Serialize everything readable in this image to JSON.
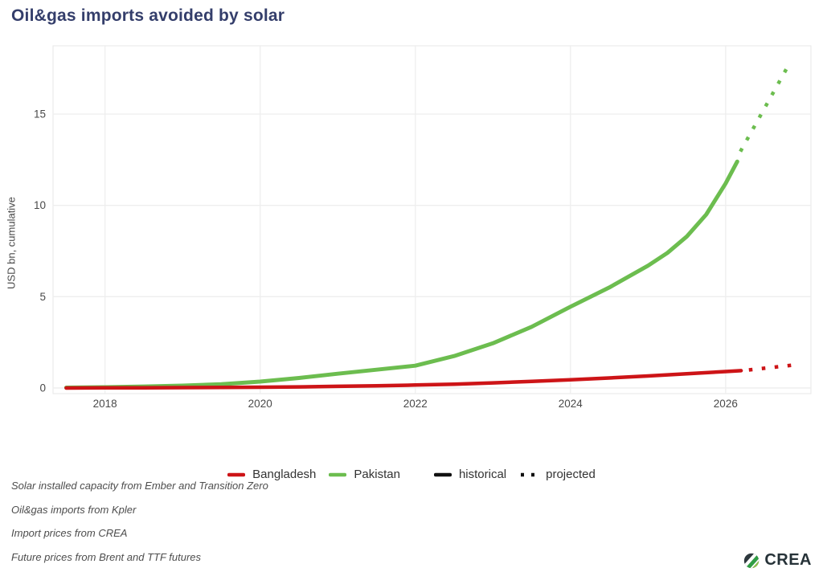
{
  "title": "Oil&gas imports avoided by solar",
  "colors": {
    "bangladesh": "#cd1417",
    "pakistan": "#6cbd4f",
    "historical_key": "#111111",
    "title": "#343e6b",
    "grid": "#eeeeee",
    "axis_text": "#4a4a4a"
  },
  "legend": {
    "items": [
      {
        "label": "Bangladesh",
        "color": "#cd1417",
        "dash": "solid"
      },
      {
        "label": "Pakistan",
        "color": "#6cbd4f",
        "dash": "solid"
      },
      {
        "label": "historical",
        "color": "#111111",
        "dash": "solid"
      },
      {
        "label": "projected",
        "color": "#111111",
        "dash": "dotted"
      }
    ]
  },
  "footnotes": [
    "Solar installed capacity from Ember and Transition Zero",
    "Oil&gas imports from Kpler",
    "Import prices from CREA",
    "Future prices from Brent and TTF futures"
  ],
  "logo": {
    "text": "CREA"
  },
  "chart_data": {
    "type": "line",
    "title": "Oil&gas imports avoided by solar",
    "xlabel": "",
    "ylabel": "USD bn, cumulative",
    "x_ticks": [
      2018,
      2020,
      2022,
      2024,
      2026
    ],
    "y_ticks": [
      0,
      5,
      10,
      15
    ],
    "xlim": [
      2017.33,
      2027.1
    ],
    "ylim": [
      -0.31,
      18.74
    ],
    "grid": "major-only",
    "legend_position": "bottom",
    "series": [
      {
        "name": "Pakistan historical",
        "color": "#6cbd4f",
        "dash": "solid",
        "width": 5,
        "points": [
          [
            2017.5,
            0.02
          ],
          [
            2018,
            0.04
          ],
          [
            2018.5,
            0.08
          ],
          [
            2019,
            0.13
          ],
          [
            2019.5,
            0.21
          ],
          [
            2020,
            0.35
          ],
          [
            2020.5,
            0.55
          ],
          [
            2021,
            0.78
          ],
          [
            2021.5,
            1.0
          ],
          [
            2022,
            1.22
          ],
          [
            2022.5,
            1.75
          ],
          [
            2023,
            2.45
          ],
          [
            2023.5,
            3.35
          ],
          [
            2024,
            4.45
          ],
          [
            2024.5,
            5.5
          ],
          [
            2025,
            6.7
          ],
          [
            2025.25,
            7.4
          ],
          [
            2025.5,
            8.3
          ],
          [
            2025.75,
            9.5
          ],
          [
            2026,
            11.2
          ],
          [
            2026.15,
            12.4
          ]
        ]
      },
      {
        "name": "Pakistan projected",
        "color": "#6cbd4f",
        "dash": "dotted",
        "width": 4.5,
        "points": [
          [
            2026.19,
            12.95
          ],
          [
            2026.84,
            17.9
          ]
        ]
      },
      {
        "name": "Bangladesh historical",
        "color": "#cd1417",
        "dash": "solid",
        "width": 4.5,
        "points": [
          [
            2017.5,
            0.0
          ],
          [
            2018,
            0.01
          ],
          [
            2018.5,
            0.01
          ],
          [
            2019,
            0.02
          ],
          [
            2019.5,
            0.03
          ],
          [
            2020,
            0.04
          ],
          [
            2020.5,
            0.06
          ],
          [
            2021,
            0.09
          ],
          [
            2021.5,
            0.12
          ],
          [
            2022,
            0.16
          ],
          [
            2022.5,
            0.21
          ],
          [
            2023,
            0.28
          ],
          [
            2023.5,
            0.36
          ],
          [
            2024,
            0.45
          ],
          [
            2024.5,
            0.55
          ],
          [
            2025,
            0.66
          ],
          [
            2025.5,
            0.78
          ],
          [
            2026,
            0.9
          ],
          [
            2026.2,
            0.95
          ]
        ]
      },
      {
        "name": "Bangladesh projected",
        "color": "#cd1417",
        "dash": "dotted",
        "width": 4.5,
        "points": [
          [
            2026.3,
            0.99
          ],
          [
            2026.87,
            1.25
          ]
        ]
      }
    ]
  }
}
